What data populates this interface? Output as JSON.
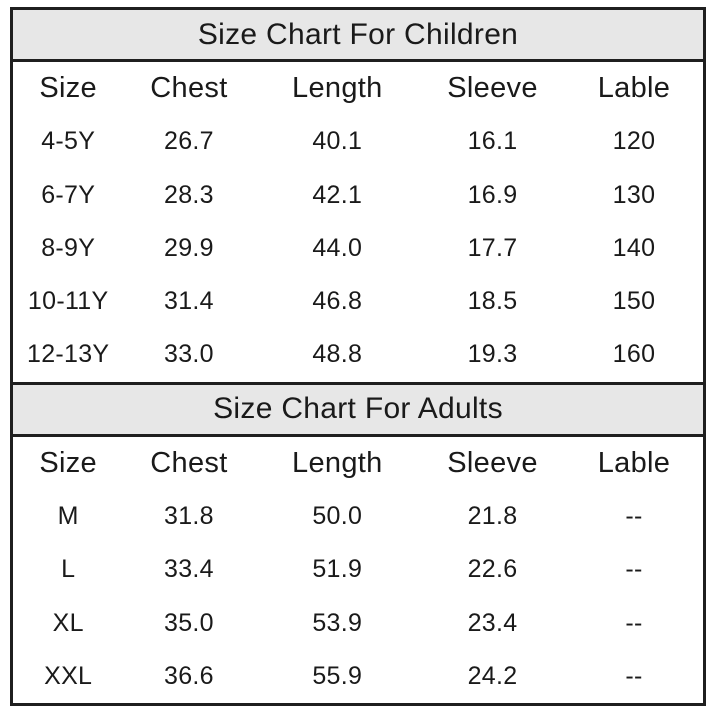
{
  "colors": {
    "band_background": "#e7e7e7",
    "border": "#1f1f1f",
    "text": "#1a1a1a",
    "page_background": "#ffffff"
  },
  "chart_data": [
    {
      "type": "table",
      "title": "Size Chart For Children",
      "columns": [
        "Size",
        "Chest",
        "Length",
        "Sleeve",
        "Lable"
      ],
      "rows": [
        [
          "4-5Y",
          "26.7",
          "40.1",
          "16.1",
          "120"
        ],
        [
          "6-7Y",
          "28.3",
          "42.1",
          "16.9",
          "130"
        ],
        [
          "8-9Y",
          "29.9",
          "44.0",
          "17.7",
          "140"
        ],
        [
          "10-11Y",
          "31.4",
          "46.8",
          "18.5",
          "150"
        ],
        [
          "12-13Y",
          "33.0",
          "48.8",
          "19.3",
          "160"
        ]
      ]
    },
    {
      "type": "table",
      "title": "Size Chart For Adults",
      "columns": [
        "Size",
        "Chest",
        "Length",
        "Sleeve",
        "Lable"
      ],
      "rows": [
        [
          "M",
          "31.8",
          "50.0",
          "21.8",
          "--"
        ],
        [
          "L",
          "33.4",
          "51.9",
          "22.6",
          "--"
        ],
        [
          "XL",
          "35.0",
          "53.9",
          "23.4",
          "--"
        ],
        [
          "XXL",
          "36.6",
          "55.9",
          "24.2",
          "--"
        ]
      ]
    }
  ]
}
